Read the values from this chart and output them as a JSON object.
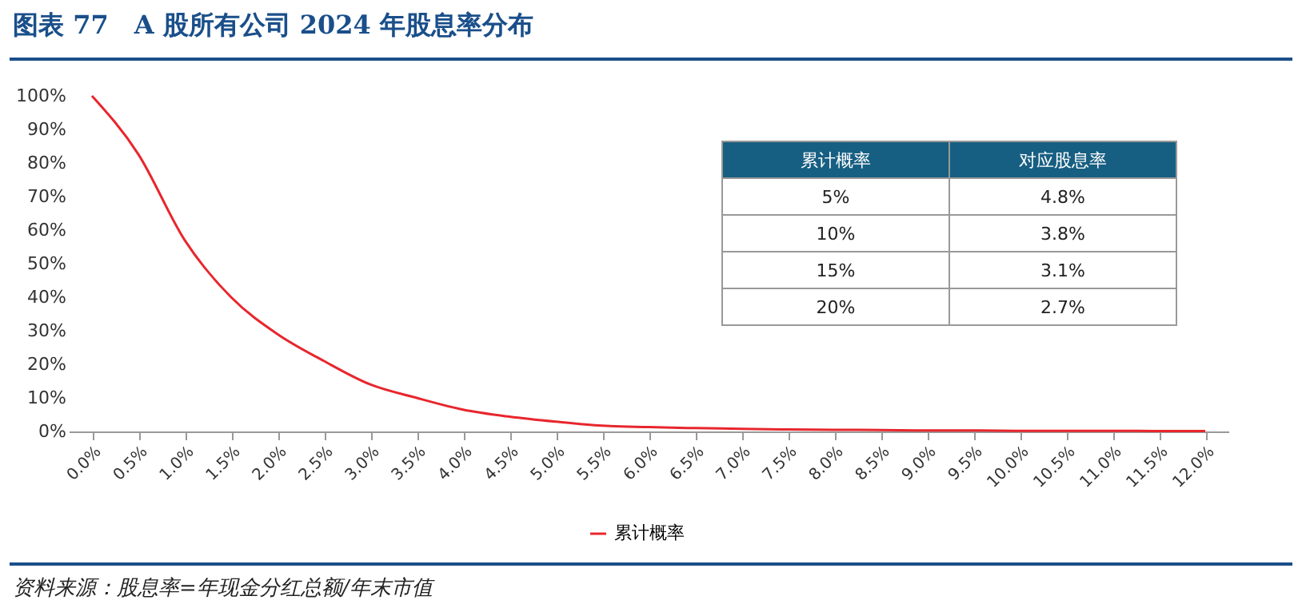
{
  "chart_data": {
    "type": "line",
    "title": "图表 77　A 股所有公司 2024 年股息率分布",
    "categories": [
      "0.0%",
      "0.5%",
      "1.0%",
      "1.5%",
      "2.0%",
      "2.5%",
      "3.0%",
      "3.5%",
      "4.0%",
      "4.5%",
      "5.0%",
      "5.5%",
      "6.0%",
      "6.5%",
      "7.0%",
      "7.5%",
      "8.0%",
      "8.5%",
      "9.0%",
      "9.5%",
      "10.0%",
      "10.5%",
      "11.0%",
      "11.5%",
      "12.0%"
    ],
    "series": [
      {
        "name": "累计概率",
        "color": "#e8262d",
        "values": [
          100,
          82.6,
          57,
          40,
          29,
          21,
          14,
          10,
          6.5,
          4.4,
          2.9,
          1.7,
          1.3,
          1.0,
          0.8,
          0.6,
          0.5,
          0.4,
          0.3,
          0.3,
          0.2,
          0.2,
          0.2,
          0.1,
          0.1
        ]
      }
    ],
    "ylim": [
      0,
      100
    ],
    "yticks": [
      {
        "value": 0,
        "label": "0%"
      },
      {
        "value": 10,
        "label": "10%"
      },
      {
        "value": 20,
        "label": "20%"
      },
      {
        "value": 30,
        "label": "30%"
      },
      {
        "value": 40,
        "label": "40%"
      },
      {
        "value": 50,
        "label": "50%"
      },
      {
        "value": 60,
        "label": "60%"
      },
      {
        "value": 70,
        "label": "70%"
      },
      {
        "value": 80,
        "label": "80%"
      },
      {
        "value": 90,
        "label": "90%"
      },
      {
        "value": 100,
        "label": "100%"
      }
    ],
    "grid": false,
    "legend": "bottom",
    "marker": "none",
    "line_style": "solid",
    "annotations": [
      "累计概率",
      "对应股息率",
      "5%",
      "4.8%",
      "10%",
      "3.8%",
      "15%",
      "3.1%",
      "20%",
      "2.7%",
      "资料来源：股息率=年现金分红总额/年末市值"
    ]
  }
}
